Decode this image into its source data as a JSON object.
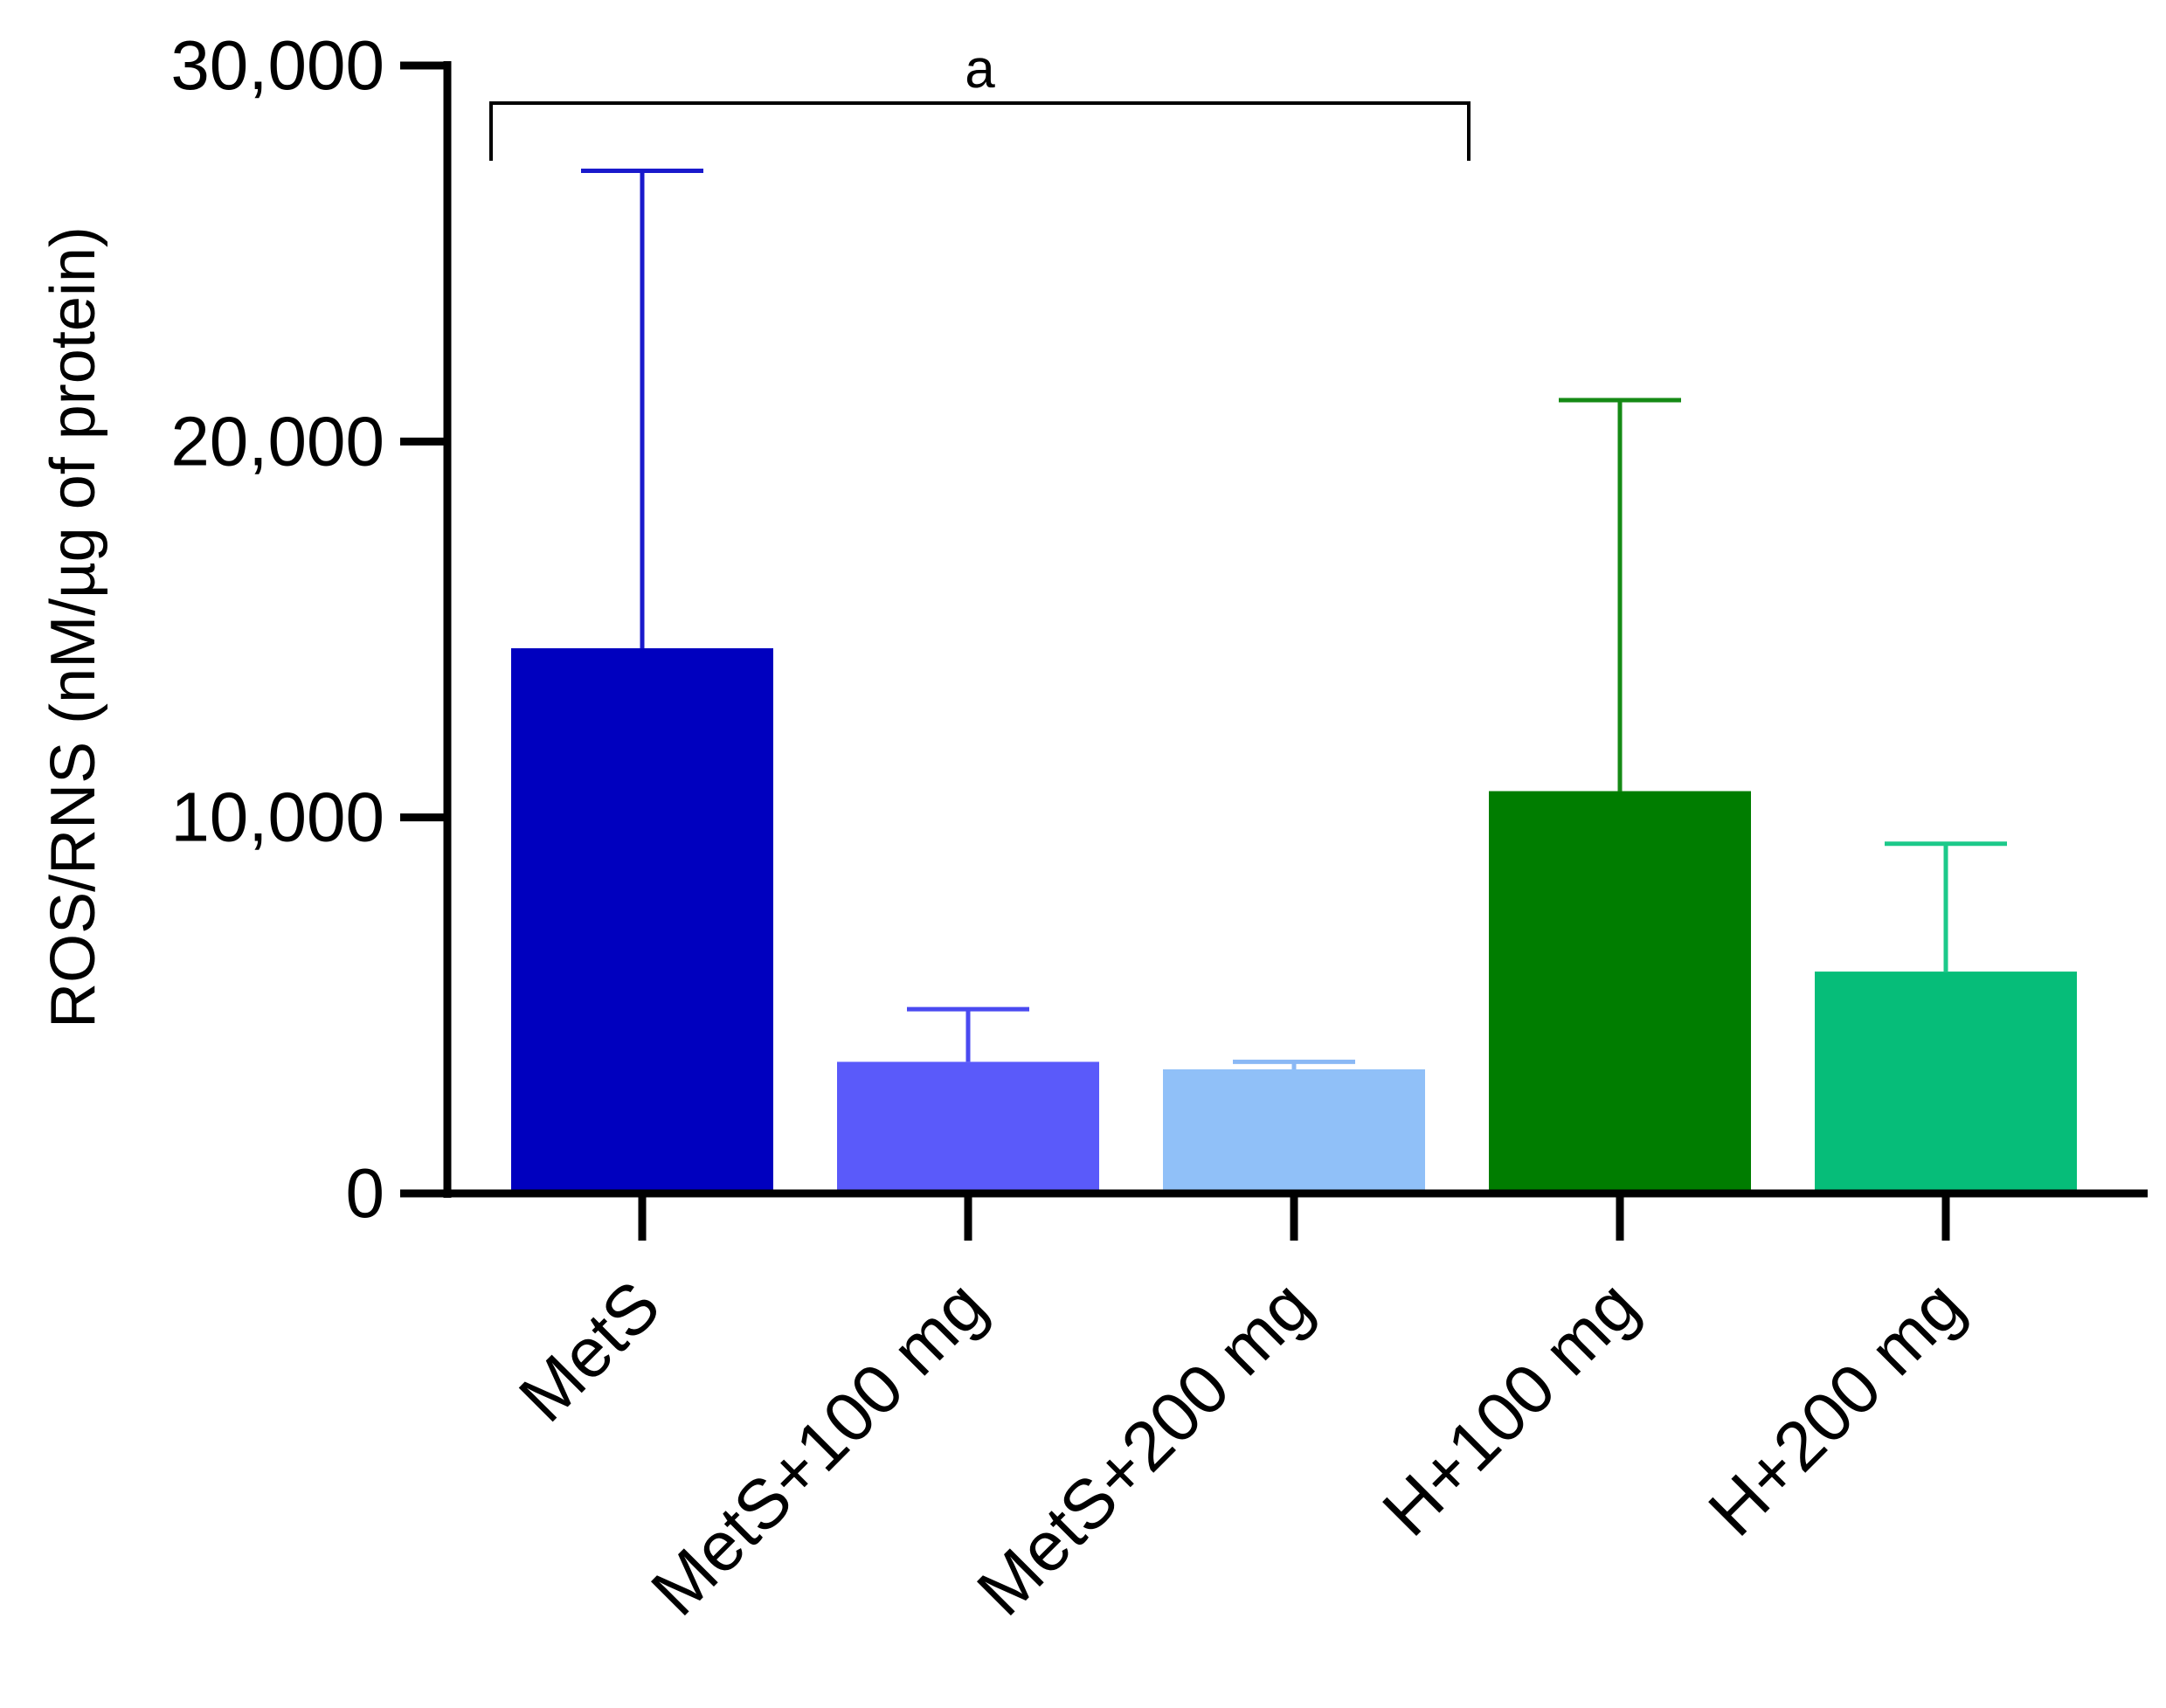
{
  "chart_data": {
    "type": "bar",
    "title": "",
    "xlabel": "",
    "ylabel": "ROS/RNS (nM/µg of protein)",
    "ylim": [
      0,
      30000
    ],
    "yticks": [
      0,
      10000,
      20000,
      30000
    ],
    "ytick_labels": [
      "0",
      "10,000",
      "20,000",
      "30,000"
    ],
    "categories": [
      "MetS",
      "MetS+100 mg",
      "MetS+200 mg",
      "H+100 mg",
      "H+200 mg"
    ],
    "values": [
      14500,
      3500,
      3300,
      10700,
      5900
    ],
    "errors_upper": [
      27200,
      4900,
      3500,
      21100,
      9300
    ],
    "colors": [
      "#0000BF",
      "#5A5AFA",
      "#90C0F8",
      "#007D00",
      "#06BD79"
    ],
    "error_colors": [
      "#1A1ACC",
      "#4A4AF0",
      "#8AB8F5",
      "#158A15",
      "#1CC98A"
    ],
    "grid": false,
    "annotations": [
      {
        "text": "a",
        "from_category": 0,
        "to_category": 3,
        "y": 29000
      }
    ]
  }
}
